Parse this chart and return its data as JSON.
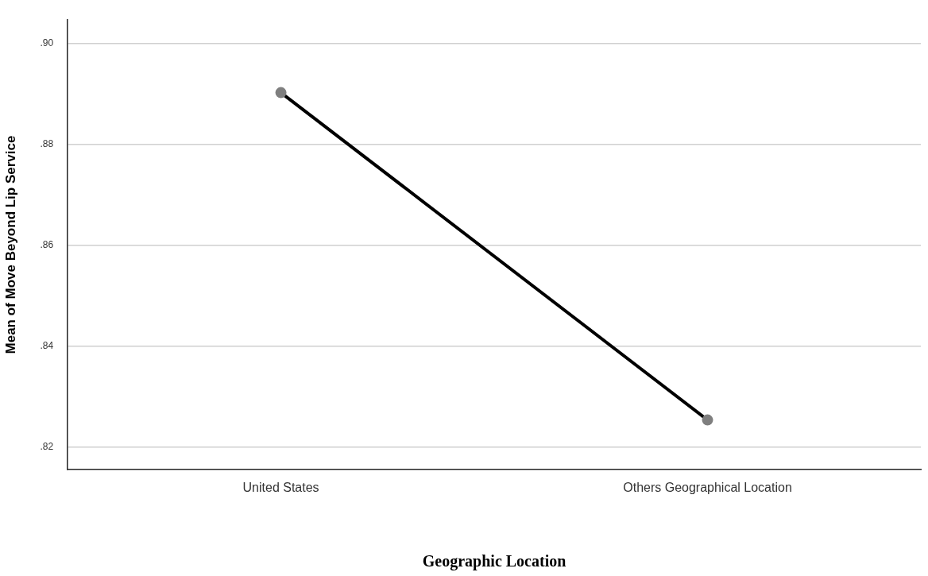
{
  "chart_data": {
    "type": "line",
    "xlabel": "Geographic Location",
    "ylabel": "Mean of Move Beyond Lip Service",
    "categories": [
      "United States",
      "Others Geographical Location"
    ],
    "series": [
      {
        "color": "#000000",
        "values": [
          0.8903,
          0.8254
        ]
      }
    ],
    "ylim": [
      0.8156,
      0.9047
    ],
    "yticks": [
      {
        "value": 0.82,
        "label": ".82"
      },
      {
        "value": 0.84,
        "label": ".84"
      },
      {
        "value": 0.86,
        "label": ".86"
      },
      {
        "value": 0.88,
        "label": ".88"
      },
      {
        "value": 0.9,
        "label": ".90"
      }
    ],
    "grid": "y",
    "legend": false,
    "marker": "circle",
    "line_style": "solid"
  }
}
